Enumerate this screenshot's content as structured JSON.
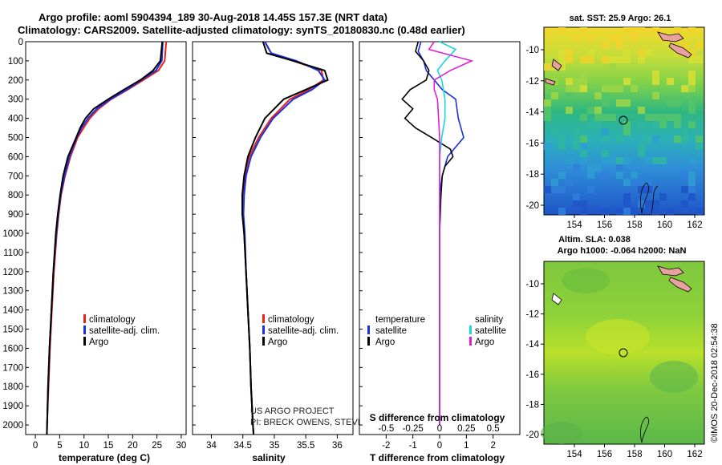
{
  "title_line1": "Argo profile: aoml 5904394_189 30-Aug-2018 14.45S 157.3E (NRT data)",
  "title_line2": "Climatology: CARS2009. Satellite-adjusted climatology: synTS_20180830.nc (0.48d earlier)",
  "colors": {
    "climatology": "#e8201c",
    "satellite": "#1a2fe0",
    "argo": "#000000",
    "sat_salinity": "#19d6e0",
    "argo_salinity": "#e020d8"
  },
  "depth_ticks": [
    "0",
    "100",
    "200",
    "300",
    "400",
    "500",
    "600",
    "700",
    "800",
    "900",
    "1000",
    "1100",
    "1200",
    "1300",
    "1400",
    "1500",
    "1600",
    "1700",
    "1800",
    "1900",
    "2000"
  ],
  "depth_range": [
    0,
    2050
  ],
  "legend1": {
    "climatology": "climatology",
    "satellite": "satellite-adj. clim.",
    "argo": "Argo"
  },
  "legend3": {
    "temperature": "temperature",
    "salinity": "salinity",
    "satellite": "satellite",
    "argo": "Argo"
  },
  "credit_line1": "US ARGO PROJECT",
  "credit_line2": "PI: BRECK OWENS, STEVE JAYNE, P.E. ROBBINS",
  "sst_map": {
    "title": "sat. SST: 25.9 Argo: 26.1",
    "lat_ticks": [
      "-10",
      "-12",
      "-14",
      "-16",
      "-18",
      "-20"
    ],
    "lon_ticks": [
      "154",
      "156",
      "158",
      "160",
      "162"
    ]
  },
  "sla_map": {
    "title1": "Altim. SLA: 0.038",
    "title2": "Argo h1000: -0.064 h2000: NaN",
    "lat_ticks": [
      "-10",
      "-12",
      "-14",
      "-16",
      "-18",
      "-20"
    ],
    "lon_ticks": [
      "154",
      "156",
      "158",
      "160",
      "162"
    ]
  },
  "watermark": "©IMOS 20-Dec-2018 02:54:38",
  "chart_data": [
    {
      "type": "line",
      "xlabel": "temperature (deg C)",
      "ylabel": "depth",
      "xlim": [
        -2,
        31
      ],
      "x_ticks": [
        "0",
        "5",
        "10",
        "15",
        "20",
        "25",
        "30"
      ],
      "series": [
        {
          "name": "climatology",
          "depth": [
            0,
            100,
            150,
            200,
            250,
            300,
            350,
            400,
            450,
            500,
            600,
            700,
            800,
            900,
            1000,
            1200,
            1400,
            1600,
            1800,
            2000,
            2050
          ],
          "values": [
            26.9,
            26.6,
            25.3,
            22.2,
            19.0,
            15.6,
            13.0,
            11.2,
            9.9,
            8.7,
            7.2,
            6.1,
            5.3,
            4.8,
            4.4,
            3.8,
            3.4,
            3.0,
            2.7,
            2.4,
            2.35
          ]
        },
        {
          "name": "satellite-adj. clim.",
          "depth": [
            0,
            100,
            150,
            200,
            250,
            300,
            350,
            400,
            450,
            500,
            600,
            700,
            800,
            900,
            1000,
            1200,
            1400,
            1600,
            1800,
            2000,
            2050
          ],
          "values": [
            26.2,
            26.0,
            24.8,
            21.8,
            18.8,
            15.4,
            12.6,
            10.8,
            9.5,
            8.5,
            7.0,
            6.0,
            5.2,
            4.7,
            4.3,
            3.7,
            3.3,
            2.9,
            2.6,
            2.4,
            2.35
          ]
        },
        {
          "name": "Argo",
          "depth": [
            0,
            100,
            150,
            200,
            250,
            300,
            350,
            400,
            450,
            500,
            600,
            700,
            800,
            900,
            1000,
            1200,
            1400,
            1600,
            1800,
            2000,
            2050
          ],
          "values": [
            26.1,
            25.7,
            24.2,
            21.6,
            18.2,
            15.0,
            12.0,
            10.3,
            9.2,
            8.4,
            6.7,
            5.7,
            5.1,
            4.6,
            4.2,
            3.7,
            3.3,
            2.9,
            2.6,
            2.4,
            2.35
          ]
        }
      ]
    },
    {
      "type": "line",
      "xlabel": "salinity",
      "ylabel": "depth",
      "xlim": [
        33.7,
        36.25
      ],
      "x_ticks": [
        "34",
        "34.5",
        "35",
        "35.5",
        "36"
      ],
      "series": [
        {
          "name": "climatology",
          "depth": [
            0,
            60,
            100,
            150,
            200,
            250,
            300,
            400,
            500,
            600,
            700,
            800,
            900,
            1000,
            1200,
            1400,
            1600,
            1800,
            2000,
            2050
          ],
          "values": [
            34.85,
            34.95,
            35.3,
            35.75,
            35.78,
            35.55,
            35.25,
            34.95,
            34.75,
            34.6,
            34.53,
            34.5,
            34.5,
            34.52,
            34.55,
            34.58,
            34.61,
            34.63,
            34.66,
            34.67
          ]
        },
        {
          "name": "satellite-adj. clim.",
          "depth": [
            0,
            60,
            100,
            150,
            200,
            250,
            300,
            400,
            500,
            600,
            700,
            800,
            900,
            1000,
            1200,
            1400,
            1600,
            1800,
            2000,
            2050
          ],
          "values": [
            34.85,
            34.95,
            35.35,
            35.7,
            35.8,
            35.6,
            35.3,
            34.98,
            34.78,
            34.63,
            34.55,
            34.52,
            34.51,
            34.53,
            34.55,
            34.58,
            34.61,
            34.63,
            34.66,
            34.67
          ]
        },
        {
          "name": "Argo",
          "depth": [
            0,
            60,
            100,
            150,
            200,
            250,
            300,
            400,
            500,
            600,
            700,
            800,
            900,
            1000,
            1200,
            1400,
            1600,
            1800,
            2000,
            2050
          ],
          "values": [
            34.82,
            34.88,
            35.3,
            35.8,
            35.85,
            35.5,
            35.15,
            34.85,
            34.7,
            34.58,
            34.52,
            34.49,
            34.49,
            34.52,
            34.55,
            34.58,
            34.61,
            34.63,
            34.66,
            34.67
          ]
        }
      ]
    },
    {
      "type": "line",
      "xlabel": "T difference from climatology",
      "x2label": "S difference from climatology",
      "ylabel": "depth",
      "xlim": [
        -3,
        3
      ],
      "x_ticks": [
        "-2",
        "-1",
        "0",
        "1",
        "2"
      ],
      "x2_ticks": [
        "-0.5",
        "-0.25",
        "0",
        "0.25",
        "0.5"
      ],
      "series": [
        {
          "name": "temperature satellite",
          "depth": [
            0,
            50,
            100,
            150,
            200,
            250,
            300,
            400,
            500,
            600,
            700,
            800,
            1000,
            1400,
            2000
          ],
          "values": [
            -0.7,
            -0.8,
            -0.6,
            -0.5,
            -0.2,
            0.1,
            0.6,
            0.7,
            0.9,
            0.3,
            0.1,
            0.0,
            0.0,
            0.0,
            0.0
          ]
        },
        {
          "name": "temperature Argo",
          "depth": [
            0,
            50,
            100,
            150,
            200,
            250,
            300,
            350,
            400,
            450,
            500,
            560,
            600,
            650,
            700,
            800,
            1000,
            1400,
            2000
          ],
          "values": [
            -0.8,
            -0.9,
            -0.6,
            -0.4,
            -0.5,
            -1.1,
            -1.4,
            -1.0,
            -1.3,
            -0.9,
            -0.3,
            0.4,
            0.5,
            0.2,
            0.1,
            0.05,
            0.0,
            0.0,
            0.0
          ]
        },
        {
          "name": "salinity satellite",
          "depth": [
            0,
            40,
            100,
            150,
            200,
            300,
            400,
            500,
            600,
            800,
            1000,
            1400,
            2000
          ],
          "values": [
            0.0,
            0.15,
            0.05,
            -0.02,
            0.02,
            0.05,
            0.05,
            0.02,
            0.0,
            0.0,
            0.0,
            0.0,
            0.0
          ]
        },
        {
          "name": "salinity Argo",
          "depth": [
            0,
            40,
            100,
            150,
            200,
            250,
            300,
            400,
            500,
            600,
            800,
            1000,
            1400,
            2000
          ],
          "values": [
            -0.05,
            -0.1,
            0.3,
            0.1,
            -0.05,
            -0.05,
            -0.02,
            -0.01,
            0.0,
            0.0,
            0.0,
            0.0,
            0.0,
            0.0
          ]
        }
      ]
    }
  ]
}
